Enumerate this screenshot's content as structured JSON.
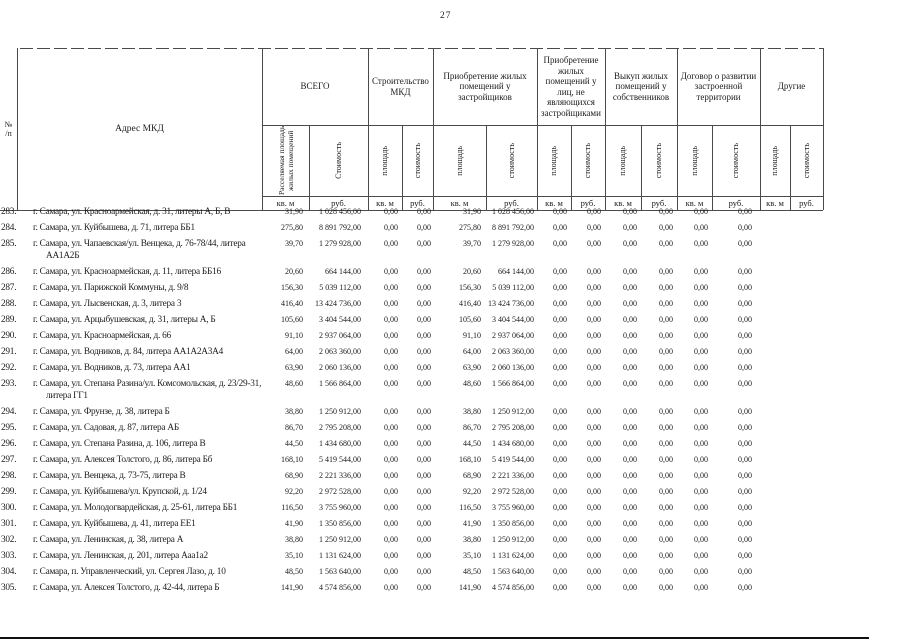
{
  "page_number": "27",
  "header": {
    "num_col": {
      "line1": "№",
      "line2": "/п"
    },
    "address_col": "Адрес МКД",
    "units": {
      "area": "кв. м",
      "cost": "руб."
    },
    "groups": [
      {
        "label": "ВСЕГО",
        "sub": [
          "Расселяемая площадь жилых помещений",
          "Стоимость"
        ]
      },
      {
        "label": "Строительство МКД",
        "sub": [
          "площадь",
          "стоимость"
        ]
      },
      {
        "label": "Приобретение жилых помещений у застройщиков",
        "sub": [
          "площадь",
          "стоимость"
        ]
      },
      {
        "label": "Приобретение жилых помещений у лиц, не являющихся застройщиками",
        "sub": [
          "площадь",
          "стоимость"
        ]
      },
      {
        "label": "Выкуп жилых помещений у собственников",
        "sub": [
          "площадь",
          "стоимость"
        ]
      },
      {
        "label": "Договор о развитии застроенной территории",
        "sub": [
          "площадь",
          "стоимость"
        ]
      },
      {
        "label": "Другие",
        "sub": [
          "площадь",
          "стоимость"
        ]
      }
    ]
  },
  "rows": [
    {
      "num": "283.",
      "address": "г. Самара, ул. Красноармейская, д. 31, литеры А, Б, В",
      "values": [
        "31,90",
        "1 028 456,00",
        "0,00",
        "0,00",
        "31,90",
        "1 028 456,00",
        "0,00",
        "0,00",
        "0,00",
        "0,00",
        "0,00",
        "0,00",
        "",
        ""
      ]
    },
    {
      "num": "284.",
      "address": "г. Самара, ул. Куйбышева, д. 71, литера ББ1",
      "values": [
        "275,80",
        "8 891 792,00",
        "0,00",
        "0,00",
        "275,80",
        "8 891 792,00",
        "0,00",
        "0,00",
        "0,00",
        "0,00",
        "0,00",
        "0,00",
        "",
        ""
      ]
    },
    {
      "num": "285.",
      "address": "г. Самара, ул. Чапаевская/ул. Венцека, д. 76-78/44, литера\nАА1А2Б",
      "values": [
        "39,70",
        "1 279 928,00",
        "0,00",
        "0,00",
        "39,70",
        "1 279 928,00",
        "0,00",
        "0,00",
        "0,00",
        "0,00",
        "0,00",
        "0,00",
        "",
        ""
      ]
    },
    {
      "num": "286.",
      "address": "г. Самара, ул. Красноармейская, д. 11, литера ББ16",
      "values": [
        "20,60",
        "664 144,00",
        "0,00",
        "0,00",
        "20,60",
        "664 144,00",
        "0,00",
        "0,00",
        "0,00",
        "0,00",
        "0,00",
        "0,00",
        "",
        ""
      ]
    },
    {
      "num": "287.",
      "address": "г. Самара, ул. Парижской Коммуны, д. 9/8",
      "values": [
        "156,30",
        "5 039 112,00",
        "0,00",
        "0,00",
        "156,30",
        "5 039 112,00",
        "0,00",
        "0,00",
        "0,00",
        "0,00",
        "0,00",
        "0,00",
        "",
        ""
      ]
    },
    {
      "num": "288.",
      "address": "г. Самара, ул. Лысвенская, д. 3, литера 3",
      "values": [
        "416,40",
        "13 424 736,00",
        "0,00",
        "0,00",
        "416,40",
        "13 424 736,00",
        "0,00",
        "0,00",
        "0,00",
        "0,00",
        "0,00",
        "0,00",
        "",
        ""
      ]
    },
    {
      "num": "289.",
      "address": "г. Самара, ул. Арцыбушевская, д. 31, литеры А, Б",
      "values": [
        "105,60",
        "3 404 544,00",
        "0,00",
        "0,00",
        "105,60",
        "3 404 544,00",
        "0,00",
        "0,00",
        "0,00",
        "0,00",
        "0,00",
        "0,00",
        "",
        ""
      ]
    },
    {
      "num": "290.",
      "address": "г. Самара, ул. Красноармейская, д. 66",
      "values": [
        "91,10",
        "2 937 064,00",
        "0,00",
        "0,00",
        "91,10",
        "2 937 064,00",
        "0,00",
        "0,00",
        "0,00",
        "0,00",
        "0,00",
        "0,00",
        "",
        ""
      ]
    },
    {
      "num": "291.",
      "address": "г. Самара, ул. Водников, д. 84, литера АА1А2А3А4",
      "values": [
        "64,00",
        "2 063 360,00",
        "0,00",
        "0,00",
        "64,00",
        "2 063 360,00",
        "0,00",
        "0,00",
        "0,00",
        "0,00",
        "0,00",
        "0,00",
        "",
        ""
      ]
    },
    {
      "num": "292.",
      "address": "г. Самара, ул. Водников, д. 73, литера АА1",
      "values": [
        "63,90",
        "2 060 136,00",
        "0,00",
        "0,00",
        "63,90",
        "2 060 136,00",
        "0,00",
        "0,00",
        "0,00",
        "0,00",
        "0,00",
        "0,00",
        "",
        ""
      ]
    },
    {
      "num": "293.",
      "address": "г. Самара, ул. Степана Разина/ул. Комсомольская, д. 23/29-31,\nлитера ГГ1",
      "values": [
        "48,60",
        "1 566 864,00",
        "0,00",
        "0,00",
        "48,60",
        "1 566 864,00",
        "0,00",
        "0,00",
        "0,00",
        "0,00",
        "0,00",
        "0,00",
        "",
        ""
      ]
    },
    {
      "num": "294.",
      "address": "г. Самара, ул. Фрунзе, д. 38, литера Б",
      "values": [
        "38,80",
        "1 250 912,00",
        "0,00",
        "0,00",
        "38,80",
        "1 250 912,00",
        "0,00",
        "0,00",
        "0,00",
        "0,00",
        "0,00",
        "0,00",
        "",
        ""
      ]
    },
    {
      "num": "295.",
      "address": "г. Самара, ул. Садовая, д. 87, литера АБ",
      "values": [
        "86,70",
        "2 795 208,00",
        "0,00",
        "0,00",
        "86,70",
        "2 795 208,00",
        "0,00",
        "0,00",
        "0,00",
        "0,00",
        "0,00",
        "0,00",
        "",
        ""
      ]
    },
    {
      "num": "296.",
      "address": "г. Самара, ул. Степана Разина, д. 106, литера В",
      "values": [
        "44,50",
        "1 434 680,00",
        "0,00",
        "0,00",
        "44,50",
        "1 434 680,00",
        "0,00",
        "0,00",
        "0,00",
        "0,00",
        "0,00",
        "0,00",
        "",
        ""
      ]
    },
    {
      "num": "297.",
      "address": "г. Самара, ул. Алексея Толстого, д. 86, литера Бб",
      "values": [
        "168,10",
        "5 419 544,00",
        "0,00",
        "0,00",
        "168,10",
        "5 419 544,00",
        "0,00",
        "0,00",
        "0,00",
        "0,00",
        "0,00",
        "0,00",
        "",
        ""
      ]
    },
    {
      "num": "298.",
      "address": "г. Самара, ул. Венцека, д. 73-75, литера В",
      "values": [
        "68,90",
        "2 221 336,00",
        "0,00",
        "0,00",
        "68,90",
        "2 221 336,00",
        "0,00",
        "0,00",
        "0,00",
        "0,00",
        "0,00",
        "0,00",
        "",
        ""
      ]
    },
    {
      "num": "299.",
      "address": "г. Самара, ул. Куйбышева/ул. Крупской, д. 1/24",
      "values": [
        "92,20",
        "2 972 528,00",
        "0,00",
        "0,00",
        "92,20",
        "2 972 528,00",
        "0,00",
        "0,00",
        "0,00",
        "0,00",
        "0,00",
        "0,00",
        "",
        ""
      ]
    },
    {
      "num": "300.",
      "address": "г. Самара, ул. Молодогвардейская, д. 25-61, литера ББ1",
      "values": [
        "116,50",
        "3 755 960,00",
        "0,00",
        "0,00",
        "116,50",
        "3 755 960,00",
        "0,00",
        "0,00",
        "0,00",
        "0,00",
        "0,00",
        "0,00",
        "",
        ""
      ]
    },
    {
      "num": "301.",
      "address": "г. Самара, ул. Куйбышева, д. 41, литера ЕЕ1",
      "values": [
        "41,90",
        "1 350 856,00",
        "0,00",
        "0,00",
        "41,90",
        "1 350 856,00",
        "0,00",
        "0,00",
        "0,00",
        "0,00",
        "0,00",
        "0,00",
        "",
        ""
      ]
    },
    {
      "num": "302.",
      "address": "г. Самара, ул. Ленинская, д. 38, литера А",
      "values": [
        "38,80",
        "1 250 912,00",
        "0,00",
        "0,00",
        "38,80",
        "1 250 912,00",
        "0,00",
        "0,00",
        "0,00",
        "0,00",
        "0,00",
        "0,00",
        "",
        ""
      ]
    },
    {
      "num": "303.",
      "address": "г. Самара, ул. Ленинская, д. 201, литера Ааа1а2",
      "values": [
        "35,10",
        "1 131 624,00",
        "0,00",
        "0,00",
        "35,10",
        "1 131 624,00",
        "0,00",
        "0,00",
        "0,00",
        "0,00",
        "0,00",
        "0,00",
        "",
        ""
      ]
    },
    {
      "num": "304.",
      "address": "г. Самара, п. Управленческий, ул. Сергея Лазо, д. 10",
      "values": [
        "48,50",
        "1 563 640,00",
        "0,00",
        "0,00",
        "48,50",
        "1 563 640,00",
        "0,00",
        "0,00",
        "0,00",
        "0,00",
        "0,00",
        "0,00",
        "",
        ""
      ]
    },
    {
      "num": "305.",
      "address": "г. Самара, ул. Алексея Толстого, д. 42-44, литера Б",
      "values": [
        "141,90",
        "4 574 856,00",
        "0,00",
        "0,00",
        "141,90",
        "4 574 856,00",
        "0,00",
        "0,00",
        "0,00",
        "0,00",
        "0,00",
        "0,00",
        "",
        ""
      ]
    }
  ]
}
